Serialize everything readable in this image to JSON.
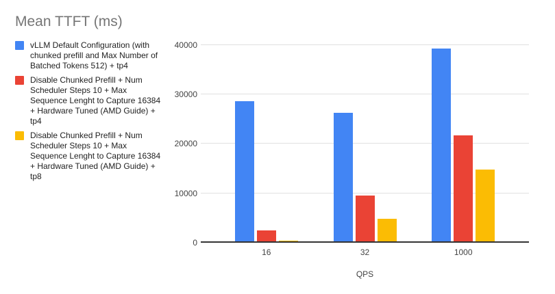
{
  "chart_data": {
    "type": "bar",
    "title": "Mean TTFT (ms)",
    "xlabel": "QPS",
    "ylabel": "",
    "categories": [
      "16",
      "32",
      "1000"
    ],
    "series": [
      {
        "name": "vLLM Default Configuration (with chunked prefill and Max Number of Batched Tokens 512) + tp4",
        "color": "#4285F4",
        "values": [
          28400,
          25950,
          38950
        ]
      },
      {
        "name": "Disable Chunked Prefill + Num Scheduler Steps 10 + Max Sequence Lenght to Capture 16384 + Hardware Tuned (AMD Guide) + tp4",
        "color": "#EA4335",
        "values": [
          2250,
          9250,
          21450
        ]
      },
      {
        "name": "Disable Chunked Prefill + Num Scheduler Steps 10 + Max Sequence Lenght to Capture 16384 + Hardware Tuned (AMD Guide) + tp8",
        "color": "#FBBC04",
        "values": [
          200,
          4500,
          14550
        ]
      }
    ],
    "yticks": [
      0,
      10000,
      20000,
      30000,
      40000
    ],
    "ylim": [
      0,
      41500
    ],
    "grid": true,
    "legend_position": "left",
    "style": {
      "background": "#ffffff",
      "title_color": "#757575",
      "legend_text_color": "#212121",
      "axis_text_color": "#424242",
      "gridline_color": "#e0e0e0",
      "axis_line_color": "#333333"
    }
  }
}
